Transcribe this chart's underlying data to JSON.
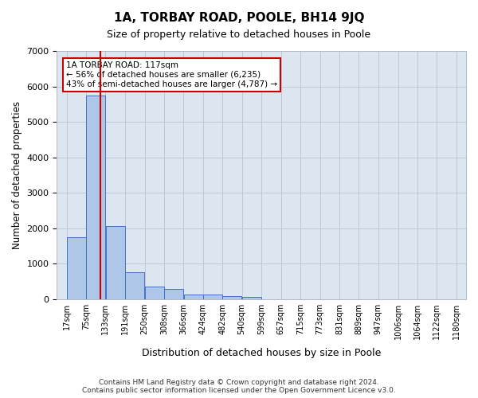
{
  "title": "1A, TORBAY ROAD, POOLE, BH14 9JQ",
  "subtitle": "Size of property relative to detached houses in Poole",
  "xlabel": "Distribution of detached houses by size in Poole",
  "ylabel": "Number of detached properties",
  "bin_labels": [
    "17sqm",
    "75sqm",
    "133sqm",
    "191sqm",
    "250sqm",
    "308sqm",
    "366sqm",
    "424sqm",
    "482sqm",
    "540sqm",
    "599sqm",
    "657sqm",
    "715sqm",
    "773sqm",
    "831sqm",
    "889sqm",
    "947sqm",
    "1006sqm",
    "1064sqm",
    "1122sqm",
    "1180sqm"
  ],
  "bin_edges": [
    17,
    75,
    133,
    191,
    250,
    308,
    366,
    424,
    482,
    540,
    599,
    657,
    715,
    773,
    831,
    889,
    947,
    1006,
    1064,
    1122,
    1180
  ],
  "bar_heights": [
    1750,
    5750,
    2050,
    750,
    340,
    290,
    130,
    120,
    75,
    50,
    0,
    0,
    0,
    0,
    0,
    0,
    0,
    0,
    0,
    0
  ],
  "bar_color": "#aec6e8",
  "bar_edge_color": "#4472c4",
  "property_size": 117,
  "red_line_color": "#cc0000",
  "annotation_text": "1A TORBAY ROAD: 117sqm\n← 56% of detached houses are smaller (6,235)\n43% of semi-detached houses are larger (4,787) →",
  "annotation_box_color": "#ffffff",
  "annotation_box_edge_color": "#cc0000",
  "ylim": [
    0,
    7000
  ],
  "yticks": [
    0,
    1000,
    2000,
    3000,
    4000,
    5000,
    6000,
    7000
  ],
  "grid_color": "#c0c8d8",
  "bg_color": "#dce6f1",
  "footnote": "Contains HM Land Registry data © Crown copyright and database right 2024.\nContains public sector information licensed under the Open Government Licence v3.0."
}
